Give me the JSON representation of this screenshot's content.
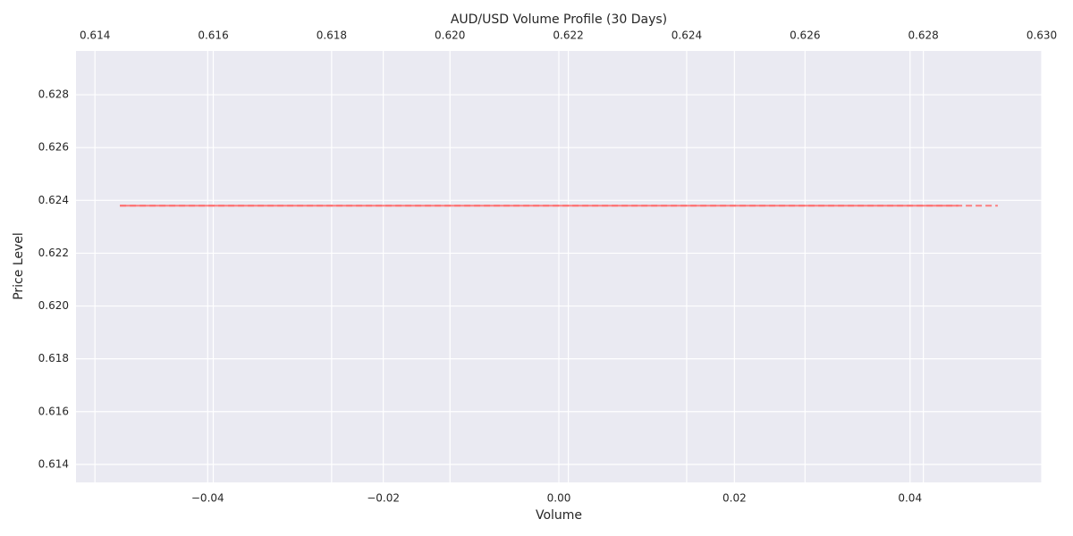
{
  "chart_data": {
    "type": "line",
    "title": "AUD/USD Volume Profile (30 Days)",
    "xlabel": "Volume",
    "ylabel": "Price Level",
    "xlim": [
      -0.055,
      0.055
    ],
    "xticks": [
      {
        "value": -0.04,
        "label": "−0.04"
      },
      {
        "value": -0.02,
        "label": "−0.02"
      },
      {
        "value": 0,
        "label": "0.00"
      },
      0.02,
      0.04
    ],
    "x2lim": [
      0.61368,
      0.63
    ],
    "x2ticks": [
      0.614,
      0.616,
      0.618,
      {
        "value": 0.62,
        "label": "0.620"
      },
      0.622,
      0.624,
      0.626,
      0.628,
      {
        "value": 0.63,
        "label": "0.630"
      }
    ],
    "ylim": [
      0.61332,
      0.62966
    ],
    "yticks": [
      0.614,
      0.616,
      0.618,
      {
        "value": 0.62,
        "label": "0.620"
      },
      0.622,
      0.624,
      0.626,
      0.628
    ],
    "grid": true,
    "series": [
      {
        "color": "#ff6b6b",
        "dash": true,
        "x": [
          -0.05,
          0.05
        ],
        "values": [
          0.6238,
          0.6238
        ]
      },
      {
        "color": "#ff6b6b",
        "dash": false,
        "x": [
          -0.05,
          0.0455
        ],
        "values": [
          0.6238,
          0.6238
        ]
      }
    ]
  }
}
